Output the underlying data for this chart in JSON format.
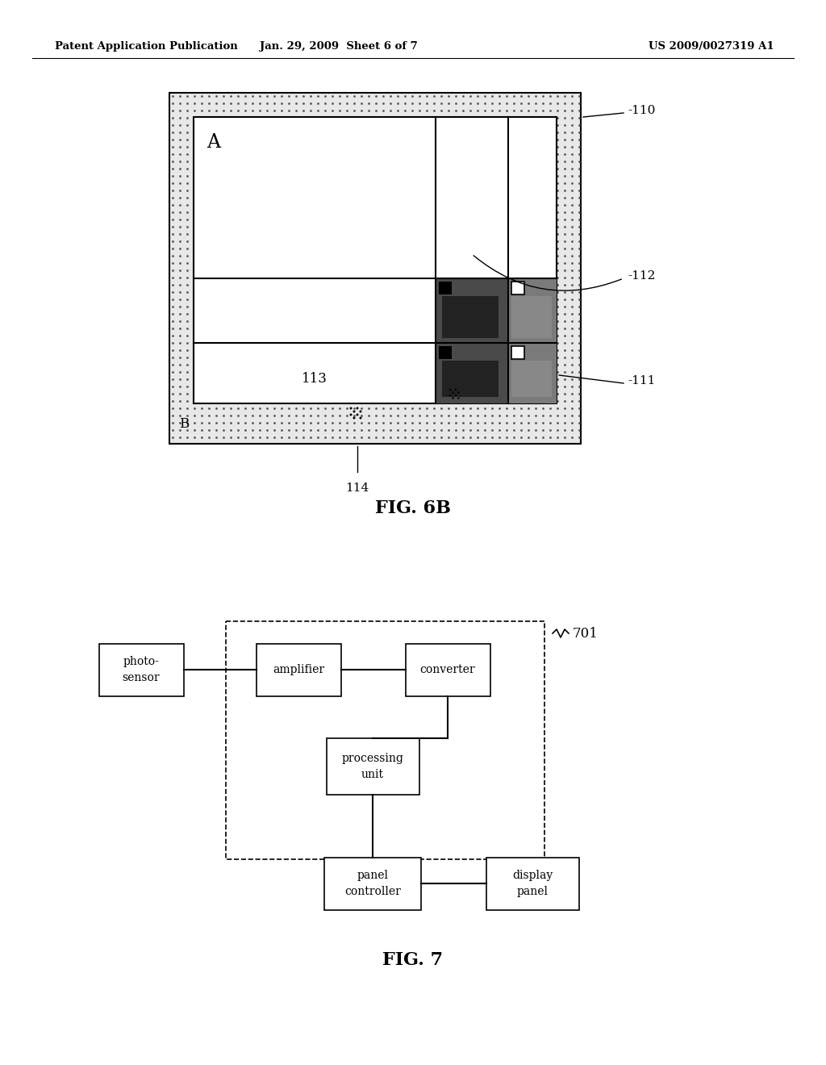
{
  "header_left": "Patent Application Publication",
  "header_center": "Jan. 29, 2009  Sheet 6 of 7",
  "header_right": "US 2009/0027319 A1",
  "fig6b_label": "FIG. 6B",
  "fig7_label": "FIG. 7",
  "label_110": "110",
  "label_111": "111",
  "label_112": "112",
  "label_113": "113",
  "label_114": "114",
  "label_701": "701",
  "label_A": "A",
  "label_B": "B",
  "bg_color": "#ffffff"
}
